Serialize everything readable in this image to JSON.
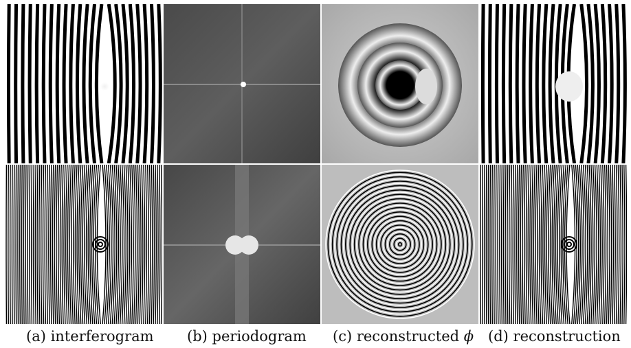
{
  "figure": {
    "captions": [
      {
        "prefix": "(a)",
        "text": "interferogram"
      },
      {
        "prefix": "(b)",
        "text": "periodogram"
      },
      {
        "prefix": "(c)",
        "text": "reconstructed",
        "symbol": "ϕ"
      },
      {
        "prefix": "(d)",
        "text": "reconstruction"
      }
    ],
    "rows": [
      {
        "panels": [
          "interferogram-fringes-coarse",
          "periodogram-cross-single-peak",
          "phase-rings-coarse",
          "reconstruction-fringes-coarse"
        ]
      },
      {
        "panels": [
          "interferogram-fringes-fine",
          "periodogram-cross-double-peak",
          "phase-rings-fine",
          "reconstruction-fringes-fine"
        ]
      }
    ]
  }
}
